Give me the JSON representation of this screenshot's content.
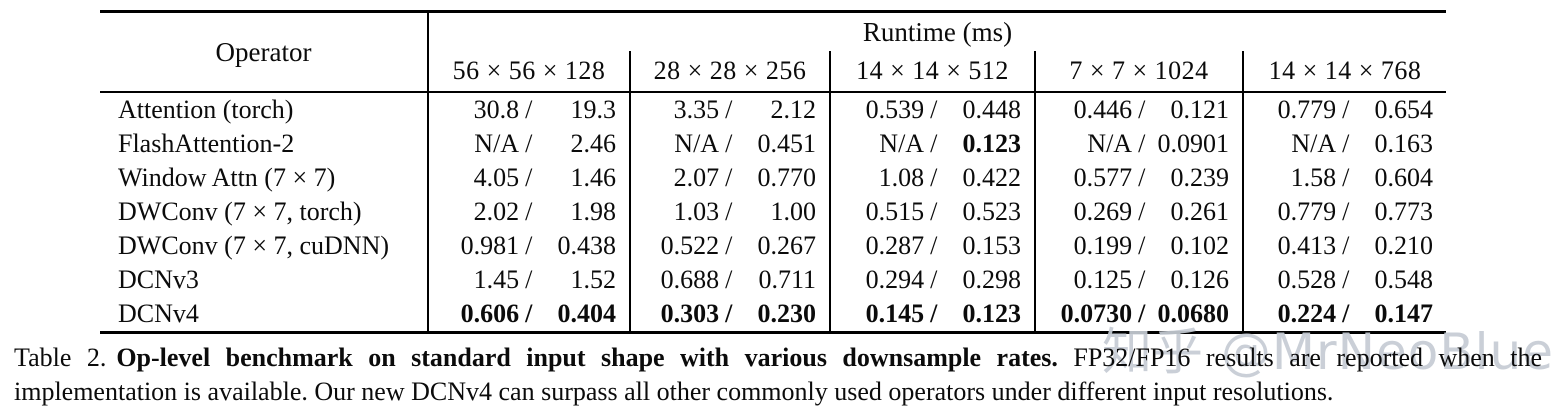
{
  "table": {
    "header": {
      "operator_label": "Operator",
      "runtime_label": "Runtime (ms)",
      "shape_columns": [
        "56 × 56 × 128",
        "28 × 28 × 256",
        "14 × 14 × 512",
        "7 × 7 × 1024",
        "14 × 14 × 768"
      ]
    },
    "rows": [
      {
        "operator": "Attention (torch)",
        "cells": [
          {
            "fp32": "30.8",
            "fp16": "19.3"
          },
          {
            "fp32": "3.35",
            "fp16": "2.12"
          },
          {
            "fp32": "0.539",
            "fp16": "0.448"
          },
          {
            "fp32": "0.446",
            "fp16": "0.121"
          },
          {
            "fp32": "0.779",
            "fp16": "0.654"
          }
        ]
      },
      {
        "operator": "FlashAttention-2",
        "cells": [
          {
            "fp32": "N/A",
            "fp16": "2.46"
          },
          {
            "fp32": "N/A",
            "fp16": "0.451"
          },
          {
            "fp32": "N/A",
            "fp16": "0.123",
            "bold_fp16": true
          },
          {
            "fp32": "N/A",
            "fp16": "0.0901"
          },
          {
            "fp32": "N/A",
            "fp16": "0.163"
          }
        ]
      },
      {
        "operator": "Window Attn (7 × 7)",
        "cells": [
          {
            "fp32": "4.05",
            "fp16": "1.46"
          },
          {
            "fp32": "2.07",
            "fp16": "0.770"
          },
          {
            "fp32": "1.08",
            "fp16": "0.422"
          },
          {
            "fp32": "0.577",
            "fp16": "0.239"
          },
          {
            "fp32": "1.58",
            "fp16": "0.604"
          }
        ]
      },
      {
        "operator": "DWConv (7 × 7, torch)",
        "cells": [
          {
            "fp32": "2.02",
            "fp16": "1.98"
          },
          {
            "fp32": "1.03",
            "fp16": "1.00"
          },
          {
            "fp32": "0.515",
            "fp16": "0.523"
          },
          {
            "fp32": "0.269",
            "fp16": "0.261"
          },
          {
            "fp32": "0.779",
            "fp16": "0.773"
          }
        ]
      },
      {
        "operator": "DWConv (7 × 7, cuDNN)",
        "cells": [
          {
            "fp32": "0.981",
            "fp16": "0.438"
          },
          {
            "fp32": "0.522",
            "fp16": "0.267"
          },
          {
            "fp32": "0.287",
            "fp16": "0.153"
          },
          {
            "fp32": "0.199",
            "fp16": "0.102"
          },
          {
            "fp32": "0.413",
            "fp16": "0.210"
          }
        ]
      },
      {
        "operator": "DCNv3",
        "cells": [
          {
            "fp32": "1.45",
            "fp16": "1.52"
          },
          {
            "fp32": "0.688",
            "fp16": "0.711"
          },
          {
            "fp32": "0.294",
            "fp16": "0.298"
          },
          {
            "fp32": "0.125",
            "fp16": "0.126"
          },
          {
            "fp32": "0.528",
            "fp16": "0.548"
          }
        ]
      },
      {
        "operator": "DCNv4",
        "bold": true,
        "cells": [
          {
            "fp32": "0.606",
            "fp16": "0.404"
          },
          {
            "fp32": "0.303",
            "fp16": "0.230"
          },
          {
            "fp32": "0.145",
            "fp16": "0.123"
          },
          {
            "fp32": "0.0730",
            "fp16": "0.0680"
          },
          {
            "fp32": "0.224",
            "fp16": "0.147"
          }
        ]
      }
    ]
  },
  "caption": {
    "label": "Table 2.",
    "bold_text": "Op-level benchmark on standard input shape with various downsample rates.",
    "text": "FP32/FP16 results are reported when the implementation is available. Our new DCNv4 can surpass all other commonly used operators under different input resolutions."
  },
  "watermark": {
    "text": "知乎 @MrNeoBlue",
    "color": "#c6ccd4"
  }
}
